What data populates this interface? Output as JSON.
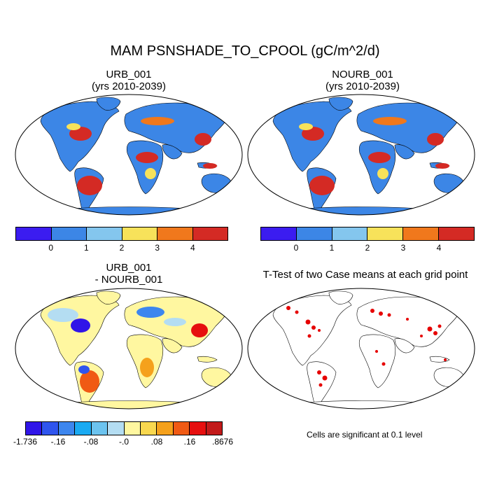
{
  "title": "MAM PSNSHADE_TO_CPOOL (gC/m^2/d)",
  "panels": {
    "urb": {
      "title_line1": "URB_001",
      "title_line2": "(yrs 2010-2039)"
    },
    "nourb": {
      "title_line1": "NOURB_001",
      "title_line2": "(yrs 2010-2039)"
    },
    "diff": {
      "title_line1": "URB_001",
      "title_line2": "- NOURB_001"
    },
    "ttest": {
      "title": "T-Test of two Case means at each grid point",
      "note": "Cells are significant at 0.1 level"
    }
  },
  "colorbar_main": {
    "colors": [
      "#3b1cf0",
      "#3c86e6",
      "#84c6ee",
      "#f7e25a",
      "#f0781c",
      "#d42a24"
    ],
    "labels": [
      "0",
      "1",
      "2",
      "3",
      "4"
    ]
  },
  "colorbar_diff": {
    "colors": [
      "#3015e8",
      "#2f55ee",
      "#3d86ee",
      "#1aaaf2",
      "#6cc3ef",
      "#b4ddf2",
      "#fff7a0",
      "#f9d84f",
      "#f5a11c",
      "#f05a14",
      "#e60f0f",
      "#c21a1a"
    ],
    "labels": [
      "-1.736",
      "-.16",
      "-.08",
      "-.0",
      ".08",
      ".16",
      ".8676"
    ]
  }
}
